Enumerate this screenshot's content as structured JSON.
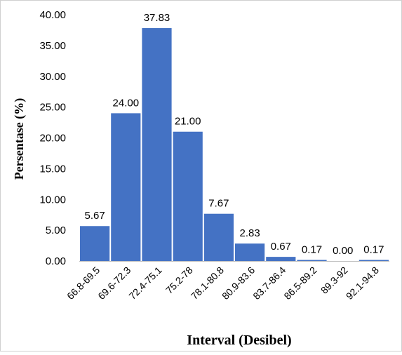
{
  "chart_data": {
    "type": "bar",
    "title": "",
    "xlabel": "Interval (Desibel)",
    "ylabel": "Persentase (%)",
    "categories": [
      "66.8-69.5",
      "69.6-72.3",
      "72.4-75.1",
      "75.2-78",
      "78.1-80.8",
      "80.9-83.6",
      "83.7-86.4",
      "86.5-89.2",
      "89.3-92",
      "92.1-94.8"
    ],
    "values": [
      5.67,
      24.0,
      37.83,
      21.0,
      7.67,
      2.83,
      0.67,
      0.17,
      0.0,
      0.17
    ],
    "value_labels": [
      "5.67",
      "24.00",
      "37.83",
      "21.00",
      "7.67",
      "2.83",
      "0.67",
      "0.17",
      "0.00",
      "0.17"
    ],
    "ylim": [
      0,
      40
    ],
    "yticks": [
      "0.00",
      "5.00",
      "10.00",
      "15.00",
      "20.00",
      "25.00",
      "30.00",
      "35.00",
      "40.00"
    ],
    "grid": false,
    "legend": "none",
    "bar_color": "#4472C4"
  }
}
